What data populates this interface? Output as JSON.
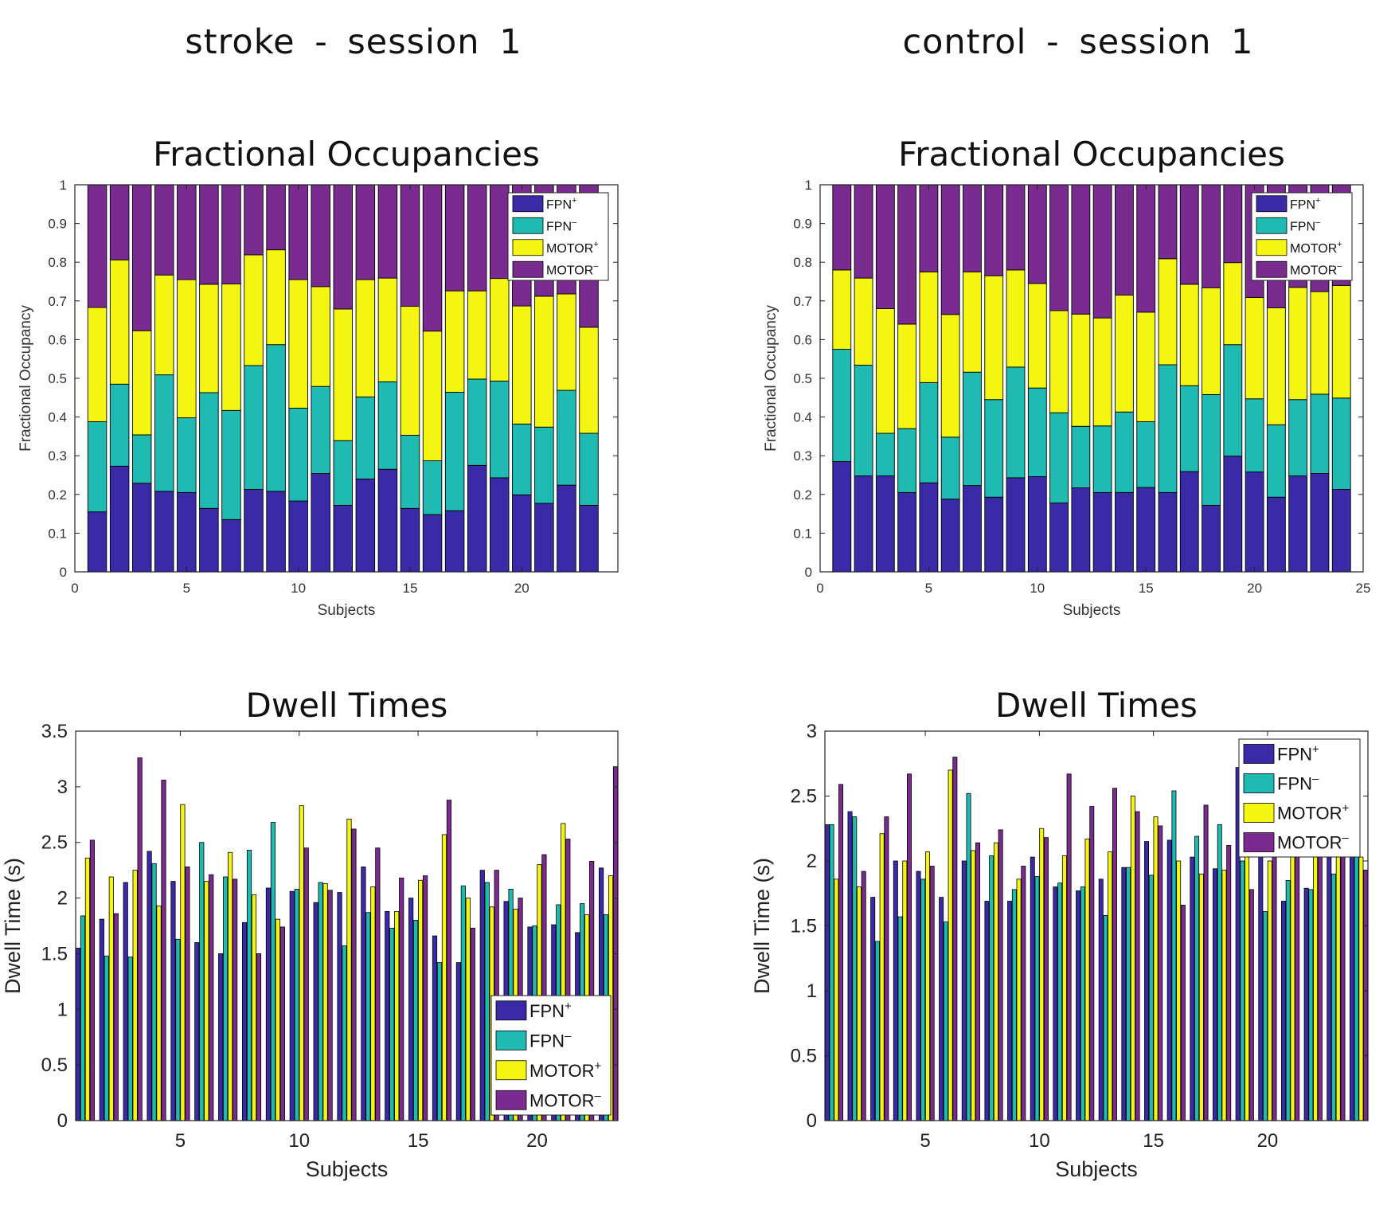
{
  "column_titles": [
    "stroke - session 1",
    "control - session 1"
  ],
  "colors": {
    "FPN+": "#3b2aa8",
    "FPN-": "#1fbab1",
    "MOTOR+": "#f5f512",
    "MOTOR-": "#7a2b8f"
  },
  "legend": [
    "FPN+",
    "FPN-",
    "MOTOR+",
    "MOTOR-"
  ],
  "chart_data": [
    {
      "id": "stroke-fo",
      "type": "bar",
      "stacked": true,
      "title": "Fractional Occupancies",
      "xlabel": "Subjects",
      "ylabel": "Fractional Occupancy",
      "xlim": [
        0,
        24.3
      ],
      "ylim": [
        0,
        1
      ],
      "xticks": [
        0,
        5,
        10,
        15,
        20
      ],
      "yticks": [
        0,
        0.1,
        0.2,
        0.3,
        0.4,
        0.5,
        0.6,
        0.7,
        0.8,
        0.9,
        1
      ],
      "legend_position": "top-right",
      "categories": [
        1,
        2,
        3,
        4,
        5,
        6,
        7,
        8,
        9,
        10,
        11,
        12,
        13,
        14,
        15,
        16,
        17,
        18,
        19,
        20,
        21,
        22,
        23
      ],
      "series": [
        {
          "name": "FPN+",
          "values": [
            0.155,
            0.273,
            0.229,
            0.208,
            0.205,
            0.164,
            0.135,
            0.213,
            0.208,
            0.183,
            0.254,
            0.172,
            0.24,
            0.265,
            0.164,
            0.148,
            0.158,
            0.275,
            0.243,
            0.199,
            0.177,
            0.224,
            0.172
          ]
        },
        {
          "name": "FPN-",
          "values": [
            0.233,
            0.212,
            0.125,
            0.301,
            0.193,
            0.299,
            0.282,
            0.32,
            0.379,
            0.24,
            0.225,
            0.167,
            0.212,
            0.226,
            0.189,
            0.139,
            0.306,
            0.223,
            0.25,
            0.183,
            0.197,
            0.245,
            0.186
          ]
        },
        {
          "name": "MOTOR+",
          "values": [
            0.295,
            0.321,
            0.269,
            0.258,
            0.357,
            0.28,
            0.327,
            0.286,
            0.245,
            0.332,
            0.258,
            0.34,
            0.303,
            0.268,
            0.333,
            0.335,
            0.262,
            0.228,
            0.265,
            0.305,
            0.338,
            0.249,
            0.274
          ]
        },
        {
          "name": "MOTOR-",
          "values": [
            0.317,
            0.194,
            0.377,
            0.233,
            0.245,
            0.257,
            0.256,
            0.181,
            0.168,
            0.245,
            0.263,
            0.321,
            0.245,
            0.241,
            0.314,
            0.378,
            0.274,
            0.274,
            0.242,
            0.313,
            0.288,
            0.282,
            0.368
          ]
        }
      ]
    },
    {
      "id": "control-fo",
      "type": "bar",
      "stacked": true,
      "title": "Fractional Occupancies",
      "xlabel": "Subjects",
      "ylabel": "Fractional Occupancy",
      "xlim": [
        0,
        25
      ],
      "ylim": [
        0,
        1
      ],
      "xticks": [
        0,
        5,
        10,
        15,
        20,
        25
      ],
      "yticks": [
        0,
        0.1,
        0.2,
        0.3,
        0.4,
        0.5,
        0.6,
        0.7,
        0.8,
        0.9,
        1
      ],
      "legend_position": "top-right",
      "categories": [
        1,
        2,
        3,
        4,
        5,
        6,
        7,
        8,
        9,
        10,
        11,
        12,
        13,
        14,
        15,
        16,
        17,
        18,
        19,
        20,
        21,
        22,
        23,
        24
      ],
      "series": [
        {
          "name": "FPN+",
          "values": [
            0.285,
            0.248,
            0.248,
            0.205,
            0.23,
            0.188,
            0.223,
            0.193,
            0.243,
            0.246,
            0.178,
            0.217,
            0.205,
            0.205,
            0.218,
            0.205,
            0.259,
            0.172,
            0.299,
            0.258,
            0.193,
            0.248,
            0.254,
            0.213
          ]
        },
        {
          "name": "FPN-",
          "values": [
            0.29,
            0.286,
            0.11,
            0.165,
            0.259,
            0.16,
            0.293,
            0.252,
            0.286,
            0.229,
            0.233,
            0.159,
            0.172,
            0.208,
            0.17,
            0.33,
            0.222,
            0.286,
            0.288,
            0.189,
            0.187,
            0.197,
            0.205,
            0.236
          ]
        },
        {
          "name": "MOTOR+",
          "values": [
            0.205,
            0.225,
            0.322,
            0.27,
            0.286,
            0.317,
            0.259,
            0.32,
            0.251,
            0.27,
            0.264,
            0.29,
            0.279,
            0.302,
            0.283,
            0.274,
            0.262,
            0.276,
            0.212,
            0.262,
            0.302,
            0.29,
            0.265,
            0.291
          ]
        },
        {
          "name": "MOTOR-",
          "values": [
            0.22,
            0.241,
            0.32,
            0.36,
            0.225,
            0.335,
            0.225,
            0.235,
            0.22,
            0.255,
            0.325,
            0.334,
            0.344,
            0.285,
            0.329,
            0.191,
            0.257,
            0.266,
            0.201,
            0.291,
            0.318,
            0.265,
            0.276,
            0.26
          ]
        }
      ]
    },
    {
      "id": "stroke-dt",
      "type": "bar",
      "stacked": false,
      "title": "Dwell Times",
      "xlabel": "Subjects",
      "ylabel": "Dwell Time (s)",
      "xlim": [
        0.6,
        23.4
      ],
      "ylim": [
        0,
        3.5
      ],
      "xticks": [
        5,
        10,
        15,
        20
      ],
      "yticks": [
        0,
        0.5,
        1,
        1.5,
        2,
        2.5,
        3,
        3.5
      ],
      "legend_position": "bottom-right",
      "categories": [
        1,
        2,
        3,
        4,
        5,
        6,
        7,
        8,
        9,
        10,
        11,
        12,
        13,
        14,
        15,
        16,
        17,
        18,
        19,
        20,
        21,
        22,
        23
      ],
      "series": [
        {
          "name": "FPN+",
          "values": [
            1.55,
            1.81,
            2.14,
            2.42,
            2.15,
            1.6,
            1.5,
            1.78,
            2.09,
            2.06,
            1.96,
            2.05,
            2.28,
            1.88,
            2.0,
            1.66,
            1.42,
            2.25,
            1.97,
            1.74,
            1.76,
            1.69,
            2.27
          ]
        },
        {
          "name": "FPN-",
          "values": [
            1.84,
            1.48,
            1.47,
            2.31,
            1.63,
            2.5,
            2.19,
            2.43,
            2.68,
            2.08,
            2.14,
            1.57,
            1.87,
            1.73,
            1.8,
            1.42,
            2.11,
            2.14,
            2.08,
            1.75,
            1.94,
            1.95,
            1.85
          ]
        },
        {
          "name": "MOTOR+",
          "values": [
            2.36,
            2.19,
            2.25,
            1.93,
            2.84,
            2.15,
            2.41,
            2.03,
            1.81,
            2.83,
            2.13,
            2.71,
            2.1,
            1.88,
            2.16,
            2.57,
            2.0,
            1.92,
            1.9,
            2.3,
            2.67,
            1.85,
            2.2
          ]
        },
        {
          "name": "MOTOR-",
          "values": [
            2.52,
            1.86,
            3.26,
            3.06,
            2.28,
            2.21,
            2.17,
            1.5,
            1.74,
            2.45,
            2.07,
            2.62,
            2.45,
            2.18,
            2.2,
            2.88,
            1.73,
            2.25,
            2.0,
            2.39,
            2.53,
            2.33,
            3.18
          ]
        }
      ]
    },
    {
      "id": "control-dt",
      "type": "bar",
      "stacked": false,
      "title": "Dwell Times",
      "xlabel": "Subjects",
      "ylabel": "Dwell Time (s)",
      "xlim": [
        0.6,
        24.4
      ],
      "ylim": [
        0,
        3
      ],
      "xticks": [
        5,
        10,
        15,
        20
      ],
      "yticks": [
        0,
        0.5,
        1,
        1.5,
        2,
        2.5,
        3
      ],
      "legend_position": "top-right",
      "categories": [
        1,
        2,
        3,
        4,
        5,
        6,
        7,
        8,
        9,
        10,
        11,
        12,
        13,
        14,
        15,
        16,
        17,
        18,
        19,
        20,
        21,
        22,
        23,
        24
      ],
      "series": [
        {
          "name": "FPN+",
          "values": [
            2.28,
            2.38,
            1.72,
            2.0,
            1.92,
            1.72,
            2.0,
            1.69,
            1.69,
            2.03,
            1.8,
            1.77,
            1.86,
            1.95,
            2.15,
            2.16,
            2.03,
            1.94,
            2.72,
            2.3,
            1.69,
            1.79,
            2.13,
            2.16
          ]
        },
        {
          "name": "FPN-",
          "values": [
            2.28,
            2.34,
            1.38,
            1.57,
            1.86,
            1.53,
            2.52,
            2.04,
            1.78,
            1.88,
            1.83,
            1.8,
            1.58,
            1.95,
            1.89,
            2.54,
            2.19,
            2.28,
            2.0,
            1.61,
            1.85,
            1.78,
            1.9,
            2.1
          ]
        },
        {
          "name": "MOTOR+",
          "values": [
            1.86,
            1.8,
            2.21,
            2.0,
            2.07,
            2.7,
            2.08,
            2.14,
            1.86,
            2.25,
            2.04,
            2.17,
            2.07,
            2.5,
            2.34,
            2.0,
            1.9,
            1.93,
            2.22,
            2.0,
            2.04,
            2.21,
            2.22,
            2.03
          ]
        },
        {
          "name": "MOTOR-",
          "values": [
            2.59,
            1.92,
            2.34,
            2.67,
            1.96,
            2.8,
            2.14,
            2.24,
            1.96,
            2.18,
            2.67,
            2.42,
            2.56,
            2.38,
            2.27,
            1.66,
            2.43,
            2.12,
            1.78,
            2.15,
            2.06,
            2.3,
            2.33,
            1.93
          ]
        }
      ]
    }
  ]
}
